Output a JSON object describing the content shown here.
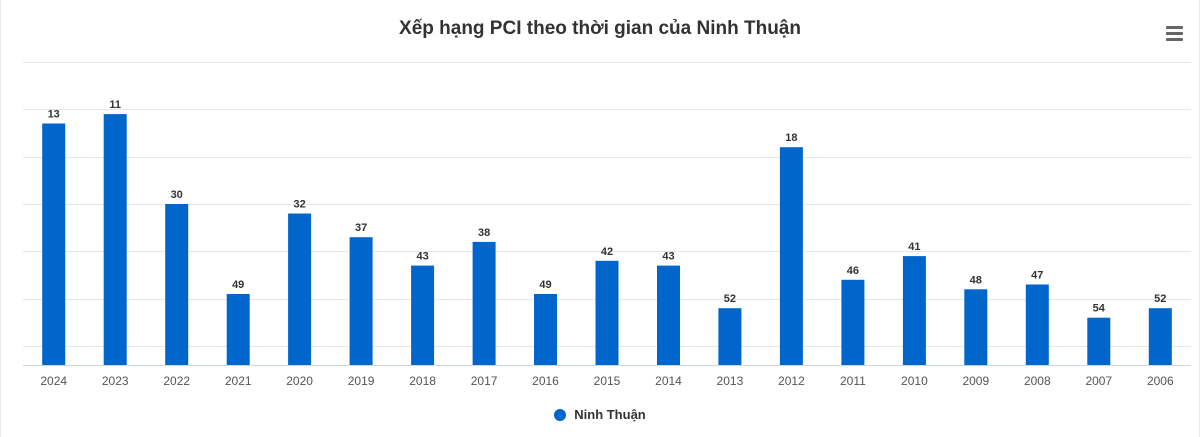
{
  "title": "Xếp hạng PCI theo thời gian của Ninh Thuận",
  "menu_icon": "hamburger-menu-icon",
  "colors": {
    "bar": "#0066cc",
    "grid": "#e6e6e6",
    "axis_text": "#555555",
    "label_text": "#333333"
  },
  "chart_data": {
    "type": "bar",
    "inverted_scale": true,
    "categories": [
      "2024",
      "2023",
      "2022",
      "2021",
      "2020",
      "2019",
      "2018",
      "2017",
      "2016",
      "2015",
      "2014",
      "2013",
      "2012",
      "2011",
      "2010",
      "2009",
      "2008",
      "2007",
      "2006"
    ],
    "series": [
      {
        "name": "Ninh Thuận",
        "values": [
          13,
          11,
          30,
          49,
          32,
          37,
          43,
          38,
          49,
          42,
          43,
          52,
          18,
          46,
          41,
          48,
          47,
          54,
          52
        ]
      }
    ],
    "ylim": [
      64,
      0
    ],
    "grid": true,
    "legend_position": "bottom-center",
    "data_labels": true
  }
}
